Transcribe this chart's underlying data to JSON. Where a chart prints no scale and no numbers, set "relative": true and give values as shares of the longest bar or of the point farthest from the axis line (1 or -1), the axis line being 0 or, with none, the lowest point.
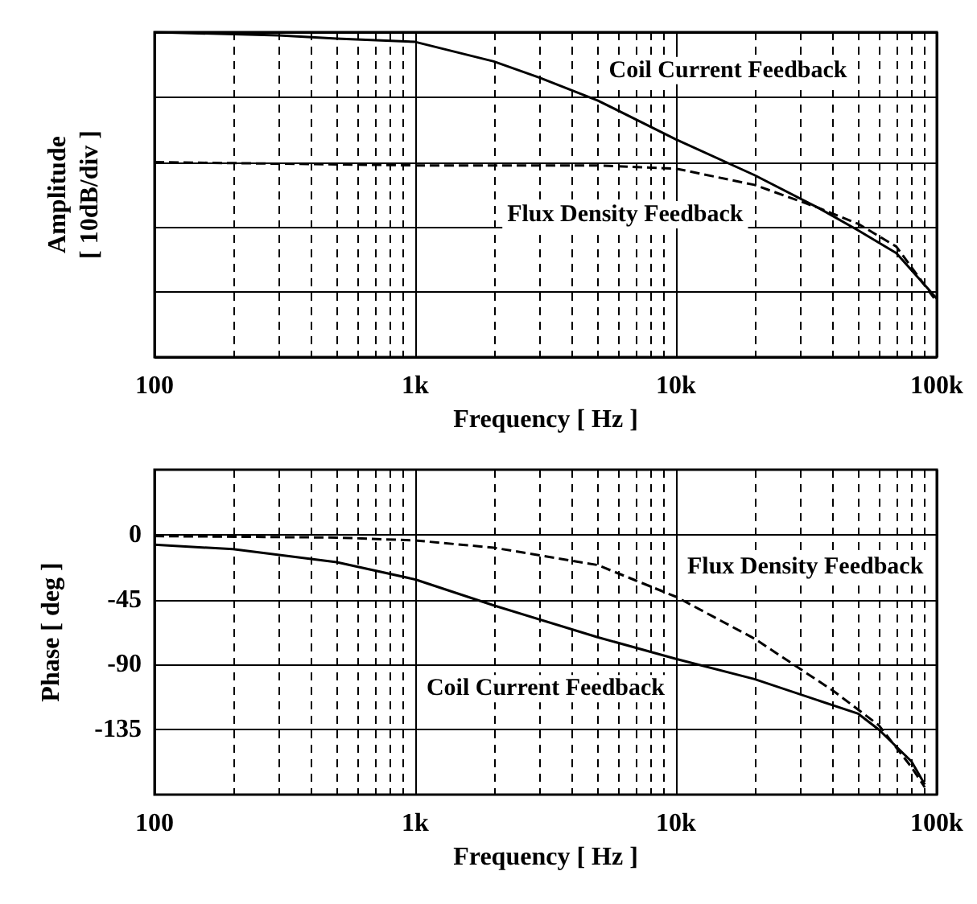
{
  "chart_data": [
    {
      "type": "line",
      "relative": true,
      "xlabel": "Frequency [ Hz ]",
      "ylabel": "Amplitude\n[ 10dB/div ]",
      "log": "x",
      "grid": true,
      "xlim": [
        100,
        100000
      ],
      "xticks": [
        100,
        {
          "value": 200,
          "label": null
        },
        {
          "value": 300,
          "label": null
        },
        {
          "value": 400,
          "label": null
        },
        {
          "value": 500,
          "label": null
        },
        {
          "value": 600,
          "label": null
        },
        {
          "value": 700,
          "label": null
        },
        {
          "value": 800,
          "label": null
        },
        {
          "value": 900,
          "label": null
        },
        {
          "value": 1000,
          "label": "1k"
        },
        {
          "value": 2000,
          "label": null
        },
        {
          "value": 3000,
          "label": null
        },
        {
          "value": 4000,
          "label": null
        },
        {
          "value": 5000,
          "label": null
        },
        {
          "value": 6000,
          "label": null
        },
        {
          "value": 7000,
          "label": null
        },
        {
          "value": 8000,
          "label": null
        },
        {
          "value": 9000,
          "label": null
        },
        {
          "value": 10000,
          "label": "10k"
        },
        {
          "value": 20000,
          "label": null
        },
        {
          "value": 30000,
          "label": null
        },
        {
          "value": 40000,
          "label": null
        },
        {
          "value": 50000,
          "label": null
        },
        {
          "value": 60000,
          "label": null
        },
        {
          "value": 70000,
          "label": null
        },
        {
          "value": 80000,
          "label": null
        },
        {
          "value": 90000,
          "label": null
        },
        {
          "value": 100000,
          "label": "100k"
        }
      ],
      "series": [
        {
          "name": "Coil Current Feedback",
          "color": "#000000",
          "line_style": "solid",
          "x": [
            100,
            300,
            500,
            1000,
            2000,
            3000,
            5000,
            10000,
            20000,
            35000,
            50000,
            70000,
            100000
          ],
          "values": [
            1.0,
            0.99,
            0.98,
            0.97,
            0.91,
            0.86,
            0.79,
            0.67,
            0.56,
            0.46,
            0.39,
            0.32,
            0.18
          ]
        },
        {
          "name": "Flux Density Feedback",
          "color": "#000000",
          "line_style": "dashed",
          "x": [
            100,
            1000,
            5000,
            10000,
            20000,
            35000,
            50000,
            70000,
            100000
          ],
          "values": [
            0.6,
            0.59,
            0.59,
            0.58,
            0.53,
            0.46,
            0.41,
            0.34,
            0.17
          ]
        }
      ]
    },
    {
      "type": "line",
      "xlabel": "Frequency [ Hz ]",
      "ylabel": "Phase [ deg ]",
      "log": "x",
      "grid": true,
      "xlim": [
        100,
        100000
      ],
      "ylim": [
        -180,
        45
      ],
      "yticks": [
        0,
        -45,
        -90,
        -135
      ],
      "xticks": [
        100,
        {
          "value": 200,
          "label": null
        },
        {
          "value": 300,
          "label": null
        },
        {
          "value": 400,
          "label": null
        },
        {
          "value": 500,
          "label": null
        },
        {
          "value": 600,
          "label": null
        },
        {
          "value": 700,
          "label": null
        },
        {
          "value": 800,
          "label": null
        },
        {
          "value": 900,
          "label": null
        },
        {
          "value": 1000,
          "label": "1k"
        },
        {
          "value": 2000,
          "label": null
        },
        {
          "value": 3000,
          "label": null
        },
        {
          "value": 4000,
          "label": null
        },
        {
          "value": 5000,
          "label": null
        },
        {
          "value": 6000,
          "label": null
        },
        {
          "value": 7000,
          "label": null
        },
        {
          "value": 8000,
          "label": null
        },
        {
          "value": 9000,
          "label": null
        },
        {
          "value": 10000,
          "label": "10k"
        },
        {
          "value": 20000,
          "label": null
        },
        {
          "value": 30000,
          "label": null
        },
        {
          "value": 40000,
          "label": null
        },
        {
          "value": 50000,
          "label": null
        },
        {
          "value": 60000,
          "label": null
        },
        {
          "value": 70000,
          "label": null
        },
        {
          "value": 80000,
          "label": null
        },
        {
          "value": 90000,
          "label": null
        },
        {
          "value": 100000,
          "label": "100k"
        }
      ],
      "series": [
        {
          "name": "Flux Density Feedback",
          "color": "#000000",
          "line_style": "dashed",
          "x": [
            100,
            500,
            1000,
            2000,
            5000,
            10000,
            20000,
            40000,
            60000,
            80000,
            90000
          ],
          "values": [
            -1,
            -2,
            -4,
            -9,
            -21,
            -43,
            -72,
            -108,
            -132,
            -161,
            -175
          ]
        },
        {
          "name": "Coil Current Feedback",
          "color": "#000000",
          "line_style": "solid",
          "x": [
            100,
            200,
            500,
            1000,
            2000,
            5000,
            10000,
            20000,
            50000,
            60000,
            80000,
            90000
          ],
          "values": [
            -7,
            -10,
            -19,
            -31,
            -49,
            -71,
            -86,
            -100,
            -124,
            -135,
            -157,
            -173
          ]
        }
      ]
    }
  ]
}
